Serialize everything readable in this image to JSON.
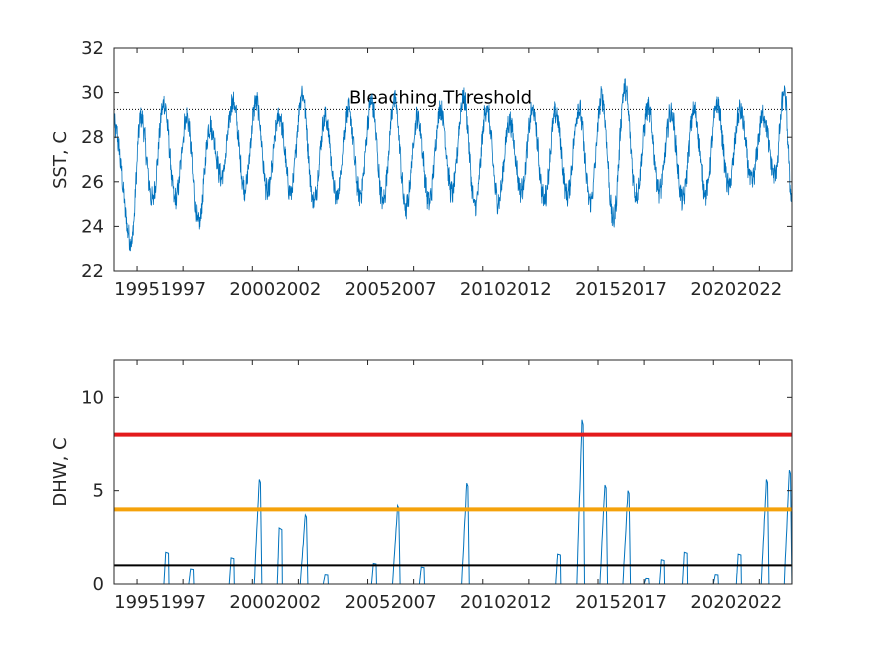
{
  "chart_data": [
    {
      "type": "line",
      "ylabel": "SST, C",
      "ylim": [
        22,
        32
      ],
      "yticks": [
        22,
        24,
        26,
        28,
        30,
        32
      ],
      "xlim": [
        "1994-01-01",
        "2023-06-01"
      ],
      "xticks": [
        "1995",
        "1997",
        "2000",
        "2002",
        "2005",
        "2007",
        "2010",
        "2012",
        "2015",
        "2017",
        "2020",
        "2022"
      ],
      "grid": false,
      "threshold": {
        "label": "Bleaching Threshold",
        "value": 29.25,
        "style": "dotted",
        "color": "#000000"
      },
      "series": [
        {
          "color": "#0072BD",
          "seasonal_extrema": [
            [
              "1994-01",
              28.5
            ],
            [
              "1994-10",
              23.3
            ],
            [
              "1995-03",
              28.9
            ],
            [
              "1995-09",
              25.2
            ],
            [
              "1996-03",
              29.5
            ],
            [
              "1996-09",
              25.2
            ],
            [
              "1997-03",
              28.9
            ],
            [
              "1997-09",
              24.1
            ],
            [
              "1998-03",
              28.5
            ],
            [
              "1998-09",
              26.2
            ],
            [
              "1999-03",
              29.6
            ],
            [
              "1999-09",
              25.7
            ],
            [
              "2000-03",
              29.6
            ],
            [
              "2000-09",
              25.5
            ],
            [
              "2001-03",
              29.0
            ],
            [
              "2001-09",
              25.5
            ],
            [
              "2002-03",
              30.0
            ],
            [
              "2002-09",
              25.1
            ],
            [
              "2003-03",
              28.9
            ],
            [
              "2003-09",
              25.3
            ],
            [
              "2004-03",
              29.2
            ],
            [
              "2004-09",
              25.4
            ],
            [
              "2005-03",
              29.6
            ],
            [
              "2005-09",
              25.1
            ],
            [
              "2006-03",
              29.7
            ],
            [
              "2006-09",
              24.8
            ],
            [
              "2007-03",
              28.9
            ],
            [
              "2007-09",
              25.1
            ],
            [
              "2008-03",
              29.3
            ],
            [
              "2008-09",
              25.5
            ],
            [
              "2009-03",
              29.8
            ],
            [
              "2009-09",
              24.9
            ],
            [
              "2010-03",
              29.3
            ],
            [
              "2010-09",
              25.1
            ],
            [
              "2011-03",
              28.7
            ],
            [
              "2011-09",
              25.6
            ],
            [
              "2012-03",
              29.2
            ],
            [
              "2012-09",
              25.2
            ],
            [
              "2013-03",
              29.1
            ],
            [
              "2013-09",
              25.4
            ],
            [
              "2014-03",
              29.3
            ],
            [
              "2014-09",
              25.1
            ],
            [
              "2015-03",
              29.8
            ],
            [
              "2015-09",
              24.3
            ],
            [
              "2016-03",
              30.2
            ],
            [
              "2016-09",
              25.4
            ],
            [
              "2017-03",
              29.3
            ],
            [
              "2017-09",
              25.6
            ],
            [
              "2018-03",
              29.1
            ],
            [
              "2018-09",
              25.2
            ],
            [
              "2019-03",
              29.2
            ],
            [
              "2019-09",
              25.5
            ],
            [
              "2020-03",
              29.5
            ],
            [
              "2020-09",
              25.8
            ],
            [
              "2021-03",
              29.2
            ],
            [
              "2021-09",
              26.0
            ],
            [
              "2022-03",
              29.0
            ],
            [
              "2022-09",
              26.3
            ],
            [
              "2023-02",
              30.0
            ],
            [
              "2023-06",
              25.2
            ]
          ]
        }
      ]
    },
    {
      "type": "line",
      "ylabel": "DHW, C",
      "ylim": [
        0,
        12
      ],
      "yticks": [
        0,
        5,
        10
      ],
      "xlim": [
        "1994-01-01",
        "2023-06-01"
      ],
      "xticks": [
        "1995",
        "1997",
        "2000",
        "2002",
        "2005",
        "2007",
        "2010",
        "2012",
        "2015",
        "2017",
        "2020",
        "2022"
      ],
      "grid": false,
      "reference_lines": [
        {
          "value": 8,
          "color": "#E31A1C"
        },
        {
          "value": 4,
          "color": "#F5A20A"
        },
        {
          "value": 1,
          "color": "#000000"
        }
      ],
      "series": [
        {
          "color": "#0072BD",
          "events": [
            {
              "start": "1996-03",
              "peak": 1.7
            },
            {
              "start": "1997-04",
              "peak": 0.8
            },
            {
              "start": "1999-01",
              "peak": 1.4
            },
            {
              "start": "2000-02",
              "peak": 5.6
            },
            {
              "start": "2001-02",
              "peak": 3.0
            },
            {
              "start": "2002-02",
              "peak": 3.7
            },
            {
              "start": "2003-02",
              "peak": 0.5
            },
            {
              "start": "2005-03",
              "peak": 1.1
            },
            {
              "start": "2006-02",
              "peak": 4.2
            },
            {
              "start": "2007-04",
              "peak": 0.9
            },
            {
              "start": "2009-02",
              "peak": 5.4
            },
            {
              "start": "2013-03",
              "peak": 1.6
            },
            {
              "start": "2014-02",
              "peak": 8.8
            },
            {
              "start": "2015-02",
              "peak": 5.3
            },
            {
              "start": "2016-02",
              "peak": 5.0
            },
            {
              "start": "2017-01",
              "peak": 0.3
            },
            {
              "start": "2017-09",
              "peak": 1.3
            },
            {
              "start": "2018-09",
              "peak": 1.7
            },
            {
              "start": "2020-01",
              "peak": 0.5
            },
            {
              "start": "2021-01",
              "peak": 1.6
            },
            {
              "start": "2022-02",
              "peak": 5.6
            },
            {
              "start": "2023-02",
              "peak": 6.1
            }
          ]
        }
      ]
    }
  ]
}
